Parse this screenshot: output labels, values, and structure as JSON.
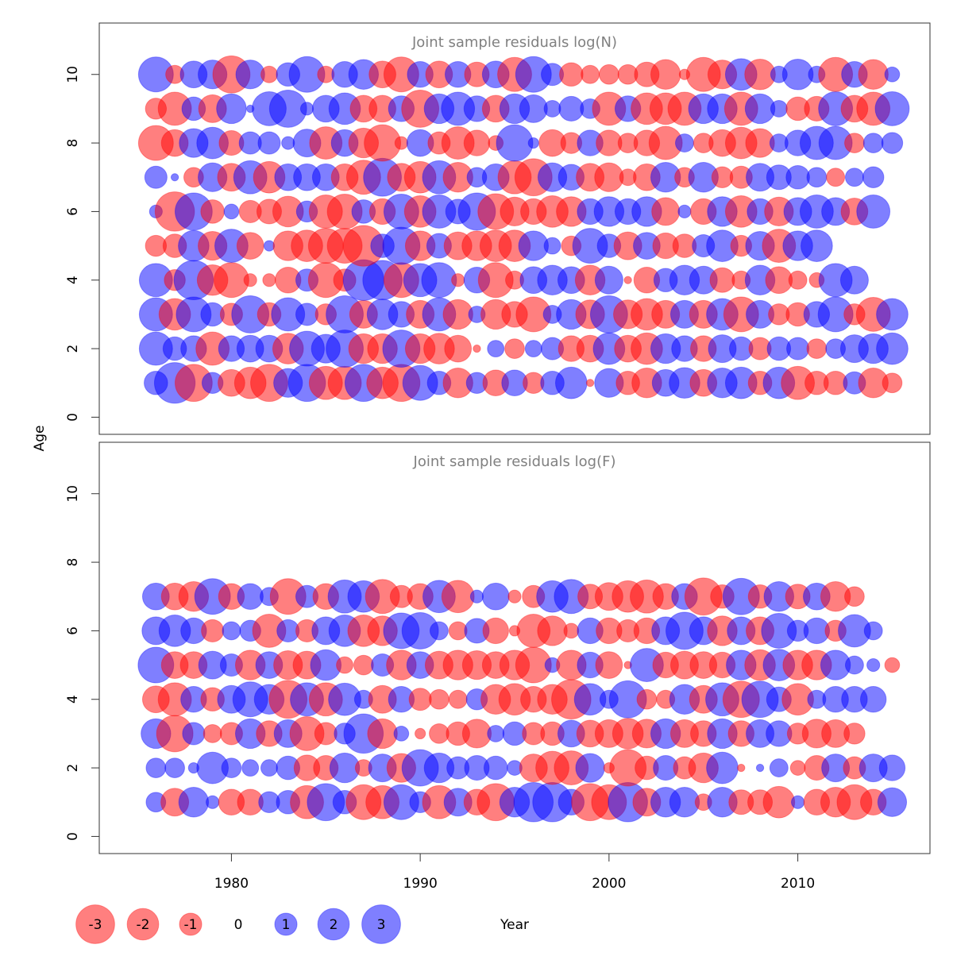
{
  "chart_data": {
    "type": "scatter",
    "subtype": "bubble",
    "xlabel": "Year",
    "ylabel": "Age",
    "xlim": [
      1973,
      2017
    ],
    "x_ticks": [
      1980,
      1990,
      2000,
      2010
    ],
    "y_ticks": [
      0,
      2,
      4,
      6,
      8,
      10
    ],
    "ylim": [
      -0.5,
      11.5
    ],
    "colors": {
      "positive": "#0000ff",
      "negative": "#ff0000",
      "title": "#808080"
    },
    "size_legend": [
      {
        "label": "-3",
        "value": -3
      },
      {
        "label": "-2",
        "value": -2
      },
      {
        "label": "-1",
        "value": -1
      },
      {
        "label": "0",
        "value": 0
      },
      {
        "label": "1",
        "value": 1
      },
      {
        "label": "2",
        "value": 2
      },
      {
        "label": "3",
        "value": 3
      }
    ],
    "years": [
      1976,
      1977,
      1978,
      1979,
      1980,
      1981,
      1982,
      1983,
      1984,
      1985,
      1986,
      1987,
      1988,
      1989,
      1990,
      1991,
      1992,
      1993,
      1994,
      1995,
      1996,
      1997,
      1998,
      1999,
      2000,
      2001,
      2002,
      2003,
      2004,
      2005,
      2006,
      2007,
      2008,
      2009,
      2010,
      2011,
      2012,
      2013,
      2014,
      2015
    ],
    "panels": [
      {
        "title": "Joint sample residuals log(N)",
        "ages": [
          1,
          2,
          3,
          4,
          5,
          6,
          7,
          8,
          9,
          10
        ],
        "residuals": {
          "1": [
            1.0,
            3.0,
            -2.5,
            0.8,
            -1.3,
            -1.8,
            -2.5,
            1.5,
            2.5,
            -2.0,
            -2.0,
            2.5,
            -1.8,
            -2.5,
            2.2,
            1.0,
            -1.6,
            0.8,
            -1.2,
            1.2,
            -0.8,
            1.0,
            1.8,
            -0.1,
            1.5,
            -1.0,
            -1.6,
            1.3,
            1.7,
            -1.3,
            1.6,
            1.8,
            -1.0,
            1.8,
            -2.0,
            -1.0,
            -1.0,
            0.9,
            -1.6,
            -0.7
          ],
          "2": [
            2.0,
            1.0,
            1.2,
            -2.0,
            1.2,
            1.3,
            1.3,
            -1.7,
            2.2,
            1.5,
            2.5,
            -1.6,
            -1.6,
            2.5,
            -1.6,
            -1.7,
            -1.3,
            -0.1,
            0.5,
            -0.7,
            0.5,
            0.9,
            -1.2,
            -1.3,
            1.8,
            -1.3,
            -1.8,
            1.6,
            1.2,
            -1.2,
            1.4,
            1.0,
            -0.9,
            1.0,
            0.9,
            -0.7,
            0.7,
            1.4,
            1.6,
            1.8
          ],
          "3": [
            2.0,
            -1.8,
            2.2,
            1.0,
            -0.9,
            2.5,
            -1.0,
            2.0,
            0.9,
            -0.8,
            2.5,
            -1.4,
            1.7,
            1.2,
            -1.4,
            2.0,
            -1.6,
            0.5,
            -1.6,
            -1.2,
            -2.2,
            0.6,
            1.6,
            -1.5,
            2.5,
            -1.5,
            -1.8,
            -1.4,
            1.4,
            -1.4,
            1.8,
            -2.2,
            1.4,
            -0.8,
            -1.0,
            1.2,
            2.2,
            -0.8,
            -2.1,
            1.8
          ],
          "4": [
            2.0,
            -0.8,
            2.8,
            -1.7,
            -2.2,
            -0.3,
            -0.3,
            -1.2,
            0.9,
            -2.2,
            -0.9,
            3.0,
            2.8,
            -2.2,
            2.0,
            2.2,
            -0.3,
            1.2,
            -2.2,
            -0.6,
            1.3,
            1.6,
            1.3,
            -1.6,
            1.4,
            -0.1,
            -1.2,
            1.0,
            1.6,
            1.4,
            -1.1,
            -0.6,
            1.6,
            -1.3,
            -0.6,
            -0.4,
            2.0,
            1.4
          ],
          "5": [
            -0.8,
            -1.0,
            1.7,
            -1.5,
            2.0,
            -1.3,
            0.2,
            -1.6,
            -1.8,
            -2.2,
            -2.2,
            -3.0,
            1.0,
            2.5,
            -1.6,
            1.1,
            -1.4,
            -1.6,
            -1.8,
            -1.8,
            1.6,
            0.5,
            -0.7,
            2.2,
            1.0,
            -1.4,
            1.3,
            -1.2,
            -1.0,
            0.9,
            1.8,
            -0.8,
            1.5,
            -2.0,
            1.6,
            1.8
          ],
          "6": [
            0.3,
            -2.8,
            2.5,
            -1.0,
            0.4,
            -0.9,
            -1.1,
            -1.7,
            0.8,
            -2.0,
            -2.2,
            1.0,
            -1.2,
            2.2,
            -1.8,
            2.0,
            1.1,
            2.5,
            -2.3,
            -1.5,
            -1.2,
            -1.8,
            -1.6,
            1.2,
            1.6,
            1.2,
            1.6,
            -1.4,
            0.3,
            -1.2,
            1.6,
            -1.8,
            1.2,
            -1.5,
            1.4,
            2.0,
            1.4,
            -1.3,
            2.0
          ],
          "7": [
            0.9,
            0.1,
            -0.7,
            1.5,
            -1.4,
            2.0,
            -1.8,
            1.3,
            1.3,
            1.3,
            -1.3,
            -2.1,
            2.6,
            -1.4,
            -1.8,
            2.0,
            -1.6,
            0.7,
            1.3,
            -2.0,
            -2.5,
            1.5,
            1.2,
            -1.4,
            -1.5,
            -0.5,
            -1.3,
            1.6,
            -0.7,
            1.6,
            -0.8,
            -0.9,
            1.4,
            1.1,
            1.0,
            0.7,
            -0.6,
            0.6,
            0.8
          ],
          "8": [
            -2.2,
            -1.3,
            1.5,
            1.8,
            -1.1,
            0.9,
            0.9,
            0.3,
            1.4,
            -1.9,
            1.3,
            -1.6,
            -2.4,
            -0.3,
            1.3,
            -0.9,
            -1.9,
            -1.2,
            -0.4,
            2.4,
            0.2,
            -1.3,
            -0.8,
            1.2,
            -1.2,
            -0.7,
            -1.2,
            -2.0,
            0.6,
            -0.7,
            -1.3,
            -1.8,
            -1.5,
            0.6,
            1.2,
            2.0,
            2.0,
            -0.7,
            0.7,
            0.8
          ],
          "9": [
            -0.8,
            -2.0,
            1.0,
            -1.4,
            1.6,
            0.1,
            2.1,
            2.5,
            0.3,
            1.3,
            1.8,
            -1.3,
            -1.3,
            1.2,
            -2.5,
            1.6,
            2.0,
            1.2,
            -1.3,
            1.6,
            1.4,
            0.5,
            1.1,
            0.7,
            -2.0,
            1.2,
            -1.8,
            -1.8,
            -2.0,
            1.6,
            1.6,
            -2.0,
            1.6,
            0.5,
            -1.0,
            -1.1,
            2.1,
            -1.3,
            -2.0,
            2.1
          ],
          "10": [
            2.2,
            -0.6,
            1.3,
            1.5,
            -2.5,
            1.5,
            -0.5,
            1.0,
            2.3,
            -0.5,
            1.2,
            1.6,
            -1.3,
            -2.2,
            1.2,
            -1.3,
            1.2,
            -1.1,
            1.3,
            -2.1,
            2.3,
            0.9,
            -1.0,
            -0.6,
            -0.7,
            -0.7,
            -1.1,
            -1.6,
            -0.2,
            -2.1,
            -1.5,
            1.8,
            -1.7,
            0.5,
            1.7,
            0.5,
            -2.1,
            1.2,
            -1.6,
            0.4
          ]
        }
      },
      {
        "title": "Joint sample residuals log(F)",
        "ages": [
          1,
          2,
          3,
          4,
          5,
          6,
          7
        ],
        "residuals": {
          "1": [
            0.7,
            -1.4,
            1.6,
            0.3,
            -1.2,
            -1.2,
            0.8,
            1.0,
            -2.0,
            2.5,
            1.0,
            -2.2,
            -2.0,
            2.2,
            0.8,
            -2.0,
            1.4,
            -1.2,
            -2.5,
            1.6,
            2.8,
            2.8,
            1.2,
            -2.5,
            -2.2,
            2.8,
            -1.4,
            1.6,
            1.6,
            -0.5,
            1.6,
            -1.1,
            -1.1,
            -1.8,
            0.3,
            -1.2,
            -1.6,
            -2.2,
            -1.2,
            1.5
          ],
          "2": [
            0.7,
            0.7,
            0.2,
            1.8,
            0.7,
            0.5,
            0.5,
            1.0,
            -1.2,
            -1.1,
            1.6,
            -0.5,
            1.4,
            -1.5,
            2.4,
            1.6,
            0.9,
            1.1,
            1.0,
            0.4,
            -1.4,
            -2.0,
            -2.1,
            1.5,
            -0.2,
            -2.4,
            -1.0,
            1.1,
            -0.9,
            -1.6,
            1.8,
            -0.1,
            0.1,
            0.6,
            -0.4,
            -1.1,
            1.4,
            -0.9,
            1.4,
            1.2
          ],
          "3": [
            1.6,
            -2.4,
            0.9,
            -0.6,
            -0.9,
            1.6,
            -1.2,
            1.4,
            -2.1,
            -0.9,
            0.8,
            2.8,
            -1.6,
            0.4,
            -0.2,
            -0.7,
            -1.0,
            -1.5,
            0.5,
            1.0,
            -0.9,
            -1.0,
            1.3,
            -1.3,
            -1.4,
            -1.7,
            -1.5,
            1.6,
            -1.4,
            -1.2,
            1.6,
            -1.2,
            1.4,
            1.2,
            -0.8,
            -1.5,
            -1.4,
            -0.8
          ],
          "4": [
            -1.3,
            -2.0,
            1.2,
            -1.0,
            1.4,
            2.2,
            1.6,
            -2.6,
            2.0,
            -2.0,
            1.9,
            0.6,
            -1.4,
            1.2,
            -0.9,
            -0.7,
            -0.6,
            0.8,
            -1.6,
            -1.8,
            -1.2,
            -1.6,
            -2.8,
            1.8,
            0.6,
            2.5,
            -0.7,
            -0.6,
            1.6,
            -1.4,
            2.0,
            -2.4,
            2.4,
            1.1,
            -1.8,
            0.6,
            1.2,
            1.2,
            1.2
          ],
          "5": [
            2.3,
            -1.3,
            -1.3,
            1.4,
            0.9,
            -1.6,
            1.3,
            -1.5,
            -1.4,
            1.7,
            -0.5,
            -0.7,
            0.9,
            -1.6,
            1.3,
            -1.4,
            -1.6,
            -1.5,
            -1.3,
            -1.6,
            -2.3,
            0.4,
            -1.6,
            1.2,
            -1.3,
            -0.1,
            2.0,
            -1.2,
            -1.4,
            -1.3,
            -1.2,
            1.6,
            -1.7,
            1.8,
            -1.6,
            -1.6,
            1.6,
            0.6,
            0.3,
            -0.4
          ],
          "6": [
            1.4,
            1.8,
            1.2,
            -0.9,
            0.6,
            0.8,
            -2.0,
            0.9,
            -0.9,
            1.4,
            1.8,
            -1.8,
            -1.6,
            2.3,
            2.4,
            0.6,
            -0.6,
            1.1,
            -1.2,
            -0.2,
            -2.0,
            -1.6,
            -0.4,
            1.2,
            -1.2,
            -0.9,
            -1.2,
            1.4,
            2.5,
            1.4,
            -1.6,
            1.4,
            -1.4,
            2.2,
            0.8,
            1.2,
            -0.8,
            1.9,
            0.6
          ],
          "7": [
            1.3,
            -1.3,
            -1.6,
            2.3,
            -1.2,
            1.2,
            0.6,
            -2.3,
            0.9,
            -1.2,
            2.0,
            1.8,
            -2.1,
            -0.9,
            -1.2,
            1.9,
            -1.9,
            0.3,
            1.3,
            -0.3,
            -0.9,
            1.8,
            2.1,
            -1.1,
            -1.4,
            -1.8,
            -2.0,
            -1.2,
            1.2,
            -2.5,
            -1.0,
            2.4,
            -1.0,
            1.6,
            -1.1,
            1.3,
            -1.6,
            -0.7
          ]
        }
      }
    ]
  }
}
